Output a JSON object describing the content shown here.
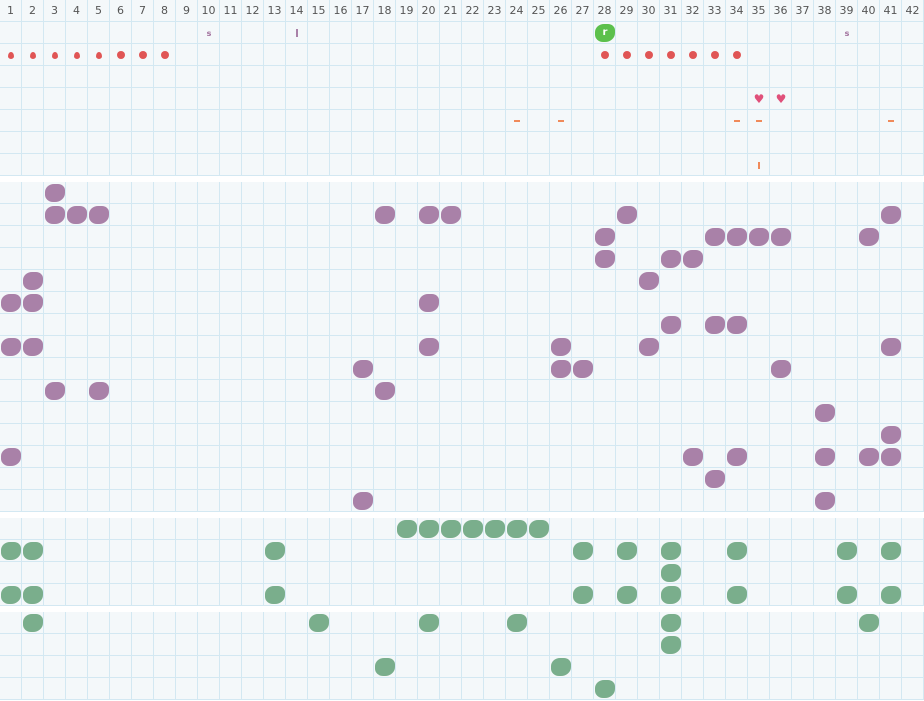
{
  "columns": [
    "1",
    "2",
    "3",
    "4",
    "5",
    "6",
    "7",
    "8",
    "9",
    "10",
    "11",
    "12",
    "13",
    "14",
    "15",
    "16",
    "17",
    "18",
    "19",
    "20",
    "21",
    "22",
    "23",
    "24",
    "25",
    "26",
    "27",
    "28",
    "29",
    "30",
    "31",
    "32",
    "33",
    "34",
    "35",
    "36",
    "37",
    "38",
    "39",
    "40",
    "41",
    "42"
  ],
  "colors": {
    "grid": "#d3e8f2",
    "background": "#f4f8fa",
    "purple_block": "#a981a8",
    "green_block": "#7aae8c",
    "player": "#5cc04c",
    "red": "#e05555",
    "heart": "#e0507a",
    "orange": "#f08a5a"
  },
  "sections": [
    {
      "name": "items",
      "rows": 7,
      "items": [
        {
          "r": 0,
          "c": 10,
          "t": "letter",
          "label": "s"
        },
        {
          "r": 0,
          "c": 14,
          "t": "pbar"
        },
        {
          "r": 0,
          "c": 28,
          "t": "bright",
          "label": "r"
        },
        {
          "r": 0,
          "c": 39,
          "t": "letter",
          "label": "s"
        },
        {
          "r": 1,
          "c": 1,
          "t": "drop"
        },
        {
          "r": 1,
          "c": 2,
          "t": "drop"
        },
        {
          "r": 1,
          "c": 3,
          "t": "drop"
        },
        {
          "r": 1,
          "c": 4,
          "t": "drop"
        },
        {
          "r": 1,
          "c": 5,
          "t": "drop"
        },
        {
          "r": 1,
          "c": 6,
          "t": "dot"
        },
        {
          "r": 1,
          "c": 7,
          "t": "dot"
        },
        {
          "r": 1,
          "c": 8,
          "t": "dot"
        },
        {
          "r": 1,
          "c": 28,
          "t": "dot"
        },
        {
          "r": 1,
          "c": 29,
          "t": "dot"
        },
        {
          "r": 1,
          "c": 30,
          "t": "dot"
        },
        {
          "r": 1,
          "c": 31,
          "t": "dot"
        },
        {
          "r": 1,
          "c": 32,
          "t": "dot"
        },
        {
          "r": 1,
          "c": 33,
          "t": "dot"
        },
        {
          "r": 1,
          "c": 34,
          "t": "dot"
        },
        {
          "r": 3,
          "c": 35,
          "t": "heart"
        },
        {
          "r": 3,
          "c": 36,
          "t": "heart"
        },
        {
          "r": 4,
          "c": 24,
          "t": "dash"
        },
        {
          "r": 4,
          "c": 26,
          "t": "dash"
        },
        {
          "r": 4,
          "c": 34,
          "t": "dash"
        },
        {
          "r": 4,
          "c": 35,
          "t": "dash"
        },
        {
          "r": 4,
          "c": 41,
          "t": "dash"
        },
        {
          "r": 6,
          "c": 35,
          "t": "vbar"
        }
      ]
    },
    {
      "name": "purple-field",
      "rows": 15,
      "type": "purple",
      "cells": [
        [
          0,
          3
        ],
        [
          1,
          3
        ],
        [
          1,
          4
        ],
        [
          1,
          5
        ],
        [
          1,
          18
        ],
        [
          1,
          20
        ],
        [
          1,
          21
        ],
        [
          1,
          29
        ],
        [
          1,
          41
        ],
        [
          2,
          28
        ],
        [
          2,
          33
        ],
        [
          2,
          34
        ],
        [
          2,
          35
        ],
        [
          2,
          36
        ],
        [
          2,
          40
        ],
        [
          3,
          28
        ],
        [
          3,
          31
        ],
        [
          3,
          32
        ],
        [
          4,
          2
        ],
        [
          4,
          30
        ],
        [
          5,
          1
        ],
        [
          5,
          2
        ],
        [
          5,
          20
        ],
        [
          6,
          31
        ],
        [
          6,
          33
        ],
        [
          6,
          34
        ],
        [
          7,
          1
        ],
        [
          7,
          2
        ],
        [
          7,
          20
        ],
        [
          7,
          26
        ],
        [
          7,
          30
        ],
        [
          7,
          41
        ],
        [
          8,
          17
        ],
        [
          8,
          26
        ],
        [
          8,
          27
        ],
        [
          8,
          36
        ],
        [
          9,
          3
        ],
        [
          9,
          5
        ],
        [
          9,
          18
        ],
        [
          10,
          38
        ],
        [
          11,
          41
        ],
        [
          12,
          1
        ],
        [
          12,
          32
        ],
        [
          12,
          34
        ],
        [
          12,
          38
        ],
        [
          12,
          40
        ],
        [
          12,
          41
        ],
        [
          13,
          33
        ],
        [
          14,
          17
        ],
        [
          14,
          38
        ]
      ]
    },
    {
      "name": "green-field-a",
      "rows": 4,
      "type": "green",
      "cells": [
        [
          0,
          19
        ],
        [
          0,
          20
        ],
        [
          0,
          21
        ],
        [
          0,
          22
        ],
        [
          0,
          23
        ],
        [
          0,
          24
        ],
        [
          0,
          25
        ],
        [
          1,
          1
        ],
        [
          1,
          2
        ],
        [
          1,
          13
        ],
        [
          1,
          27
        ],
        [
          1,
          29
        ],
        [
          1,
          31
        ],
        [
          1,
          34
        ],
        [
          1,
          39
        ],
        [
          1,
          41
        ],
        [
          2,
          31
        ],
        [
          3,
          1
        ],
        [
          3,
          2
        ],
        [
          3,
          13
        ],
        [
          3,
          27
        ],
        [
          3,
          29
        ],
        [
          3,
          31
        ],
        [
          3,
          34
        ],
        [
          3,
          39
        ],
        [
          3,
          41
        ]
      ]
    },
    {
      "name": "green-field-b",
      "rows": 4,
      "type": "green",
      "cells": [
        [
          0,
          2
        ],
        [
          0,
          15
        ],
        [
          0,
          20
        ],
        [
          0,
          24
        ],
        [
          0,
          31
        ],
        [
          0,
          40
        ],
        [
          1,
          31
        ],
        [
          2,
          18
        ],
        [
          2,
          26
        ],
        [
          3,
          28
        ]
      ]
    }
  ]
}
